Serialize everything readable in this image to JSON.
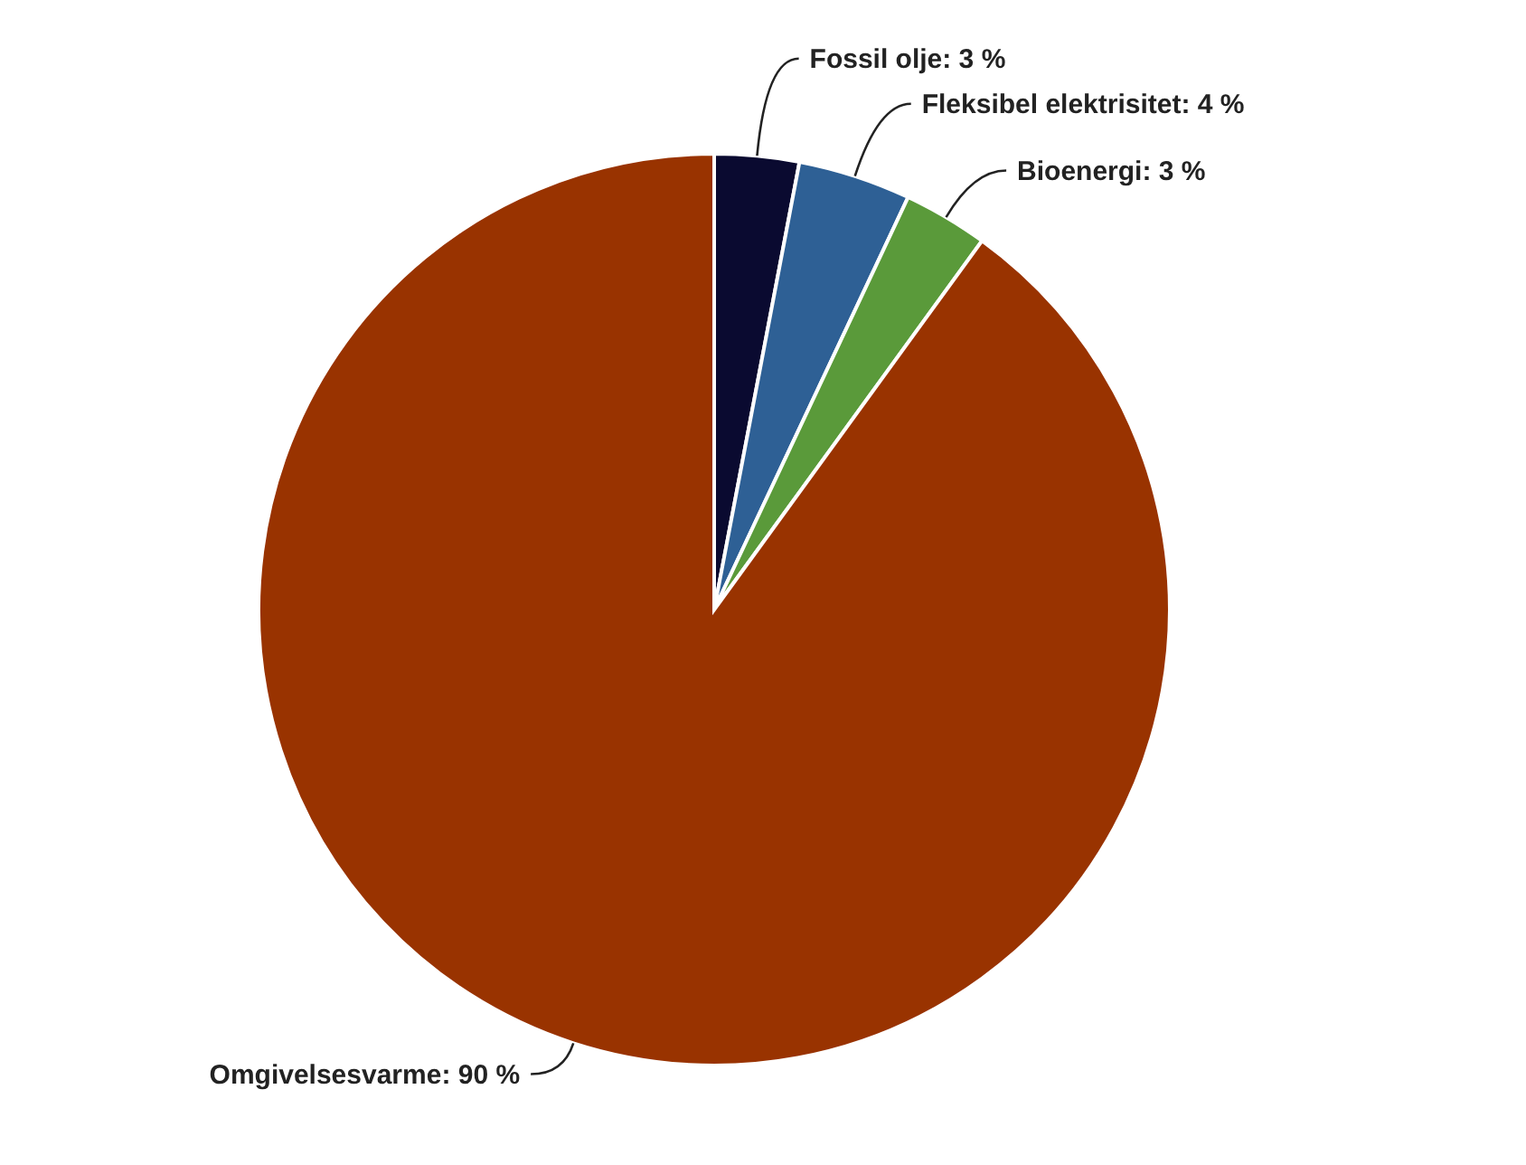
{
  "chart_data": {
    "type": "pie",
    "categories": [
      "Fossil olje",
      "Fleksibel elektrisitet",
      "Bioenergi",
      "Omgivelsesvarme"
    ],
    "values": [
      3,
      4,
      3,
      90
    ],
    "value_labels": [
      "3 %",
      "4 %",
      "3 %",
      "90 %"
    ],
    "colors": [
      "#0a0a30",
      "#2e6095",
      "#5a9a3a",
      "#993300"
    ],
    "legend": false
  }
}
